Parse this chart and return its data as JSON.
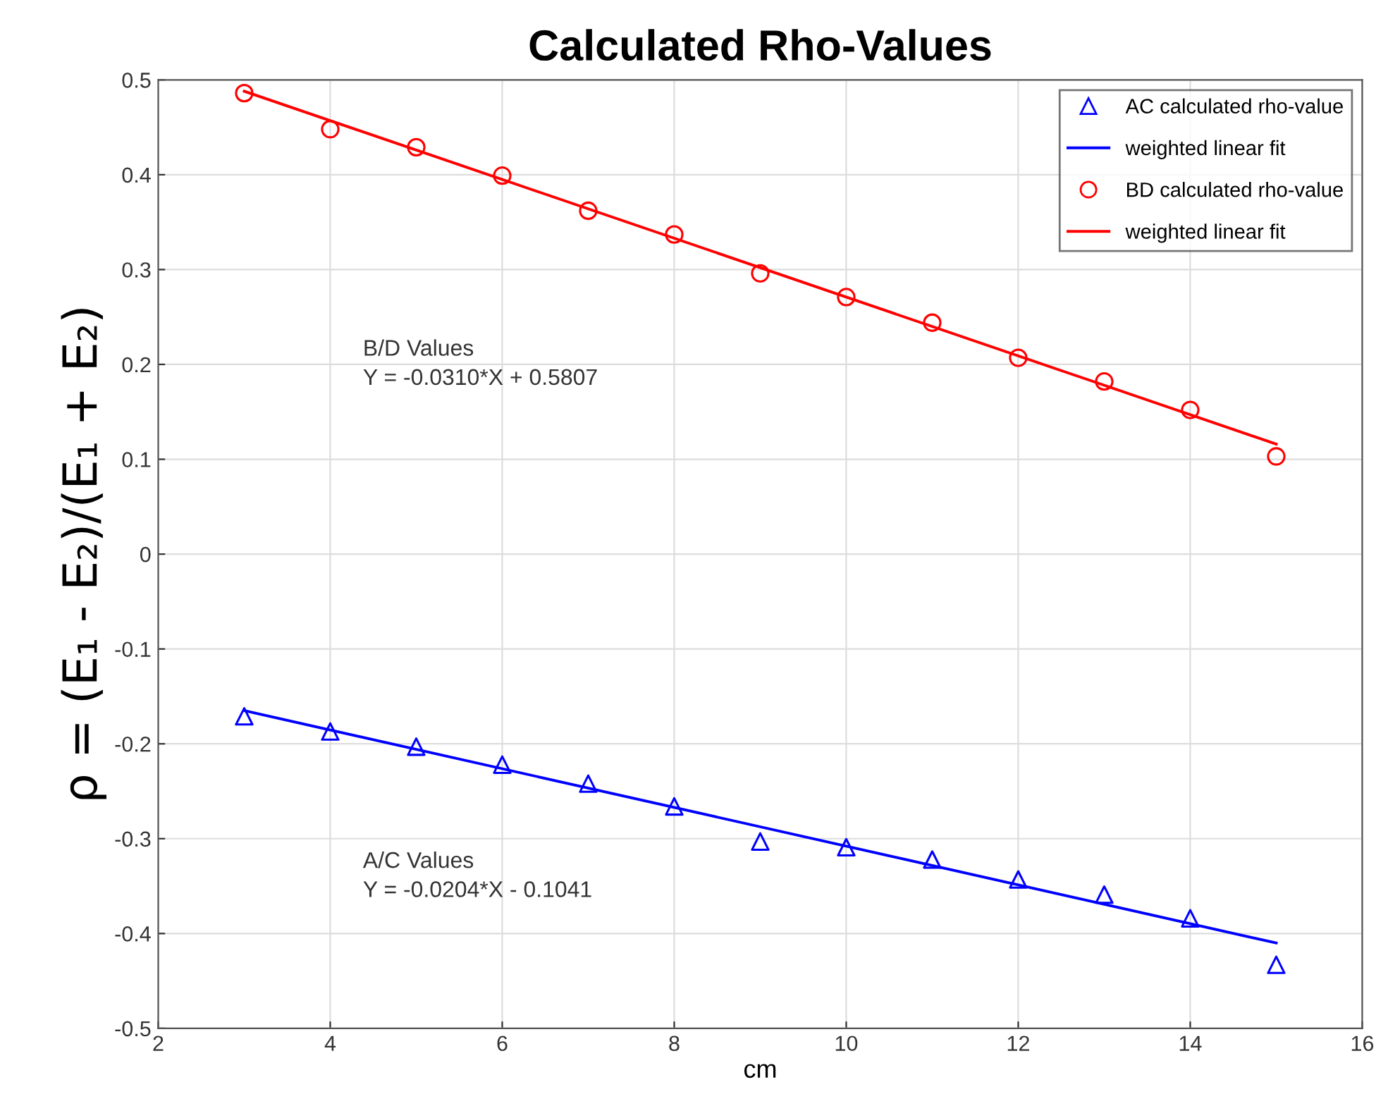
{
  "chart_data": {
    "type": "scatter",
    "title": "Calculated Rho-Values",
    "xlabel": "cm",
    "ylabel": "ρ = (E₁ - E₂)/(E₁ + E₂)",
    "xlim": [
      2,
      16
    ],
    "xticks": [
      2,
      4,
      6,
      8,
      10,
      12,
      14,
      16
    ],
    "ylim": [
      -0.5,
      0.5
    ],
    "yticks": [
      -0.5,
      -0.4,
      -0.3,
      -0.2,
      -0.1,
      0,
      0.1,
      0.2,
      0.3,
      0.4,
      0.5
    ],
    "grid": true,
    "legend": "top right",
    "series": [
      {
        "name": "AC calculated rho-value",
        "marker": "triangle",
        "color": "#0000ff",
        "x": [
          3,
          4,
          5,
          6,
          7,
          8,
          9,
          10,
          11,
          12,
          13,
          14,
          15
        ],
        "values": [
          -0.171,
          -0.187,
          -0.203,
          -0.222,
          -0.242,
          -0.266,
          -0.303,
          -0.309,
          -0.322,
          -0.343,
          -0.359,
          -0.384,
          -0.433
        ]
      },
      {
        "name": "weighted linear fit",
        "type": "line",
        "marker": "none",
        "line_style": "solid",
        "color": "#0000ff",
        "x": [
          3,
          15
        ],
        "values": [
          -0.165,
          -0.41
        ]
      },
      {
        "name": "BD calculated rho-value",
        "marker": "circle",
        "color": "#ff0000",
        "x": [
          3,
          4,
          5,
          6,
          7,
          8,
          9,
          10,
          11,
          12,
          13,
          14,
          15
        ],
        "values": [
          0.486,
          0.448,
          0.429,
          0.399,
          0.362,
          0.337,
          0.296,
          0.271,
          0.244,
          0.207,
          0.182,
          0.152,
          0.103
        ]
      },
      {
        "name": "weighted linear fit",
        "type": "line",
        "marker": "none",
        "line_style": "solid",
        "color": "#ff0000",
        "x": [
          3,
          15
        ],
        "values": [
          0.488,
          0.116
        ]
      }
    ],
    "annotations": [
      "B/D Values\nY = -0.0310*X + 0.5807",
      "A/C Values\nY = -0.0204*X - 0.1041"
    ]
  }
}
